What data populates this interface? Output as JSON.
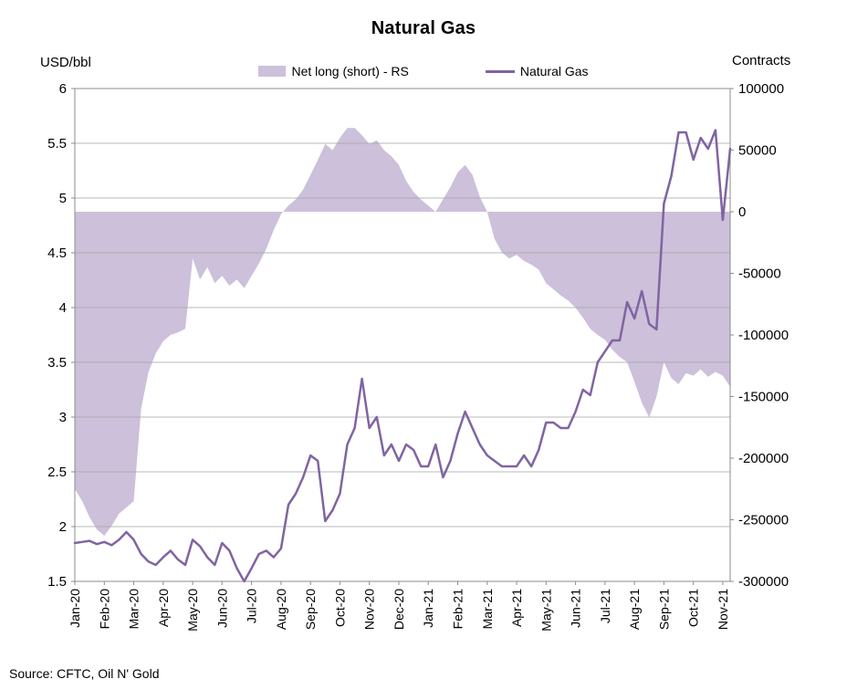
{
  "title": "Natural Gas",
  "left_axis_unit_label": "USD/bbl",
  "right_axis_unit_label": "Contracts",
  "source_note": "Source: CFTC, Oil N' Gold",
  "chart_data": {
    "type": "area+line",
    "legend_position": "top",
    "grid": "horizontal",
    "x_labels": [
      "Jan-20",
      "Feb-20",
      "Mar-20",
      "Apr-20",
      "May-20",
      "Jun-20",
      "Jul-20",
      "Aug-20",
      "Sep-20",
      "Oct-20",
      "Nov-20",
      "Dec-20",
      "Jan-21",
      "Feb-21",
      "Mar-21",
      "Apr-21",
      "May-21",
      "Jun-21",
      "Jul-21",
      "Aug-21",
      "Sep-21",
      "Oct-21",
      "Nov-21"
    ],
    "points_per_label": 4,
    "left_axis": {
      "title": "USD/bbl",
      "min": 1.5,
      "max": 6,
      "ticks": [
        6,
        5.5,
        5,
        4.5,
        4,
        3.5,
        3,
        2.5,
        2,
        1.5
      ]
    },
    "right_axis": {
      "title": "Contracts",
      "min": -300000,
      "max": 100000,
      "ticks": [
        100000,
        50000,
        0,
        -50000,
        -100000,
        -150000,
        -200000,
        -250000,
        -300000
      ]
    },
    "series": [
      {
        "name": "Net long (short) - RS",
        "type": "area",
        "axis": "right",
        "color": "#CCC0DA",
        "values": [
          -225000,
          -235000,
          -248000,
          -258000,
          -263000,
          -255000,
          -245000,
          -240000,
          -235000,
          -160000,
          -130000,
          -115000,
          -105000,
          -100000,
          -98000,
          -95000,
          -38000,
          -55000,
          -45000,
          -58000,
          -52000,
          -60000,
          -55000,
          -62000,
          -52000,
          -42000,
          -30000,
          -15000,
          -2000,
          5000,
          10000,
          18000,
          30000,
          42000,
          55000,
          50000,
          60000,
          68000,
          68000,
          62000,
          55000,
          58000,
          50000,
          45000,
          38000,
          25000,
          16000,
          10000,
          5000,
          0,
          10000,
          20000,
          32000,
          38000,
          30000,
          12000,
          0,
          -22000,
          -33000,
          -38000,
          -35000,
          -40000,
          -43000,
          -47000,
          -58000,
          -63000,
          -68000,
          -72000,
          -78000,
          -86000,
          -95000,
          -100000,
          -104000,
          -112000,
          -118000,
          -122000,
          -138000,
          -155000,
          -167000,
          -150000,
          -122000,
          -135000,
          -140000,
          -131000,
          -133000,
          -128000,
          -134000,
          -130000,
          -133000,
          -142000
        ]
      },
      {
        "name": "Natural Gas",
        "type": "line",
        "axis": "left",
        "color": "#8064A2",
        "values": [
          1.85,
          1.86,
          1.87,
          1.84,
          1.86,
          1.83,
          1.88,
          1.95,
          1.88,
          1.75,
          1.68,
          1.65,
          1.72,
          1.78,
          1.7,
          1.65,
          1.88,
          1.82,
          1.72,
          1.65,
          1.85,
          1.78,
          1.62,
          1.5,
          1.62,
          1.75,
          1.78,
          1.72,
          1.8,
          2.2,
          2.3,
          2.45,
          2.65,
          2.6,
          2.05,
          2.15,
          2.3,
          2.75,
          2.9,
          3.35,
          2.9,
          3.0,
          2.65,
          2.75,
          2.6,
          2.75,
          2.7,
          2.55,
          2.55,
          2.75,
          2.45,
          2.6,
          2.85,
          3.05,
          2.9,
          2.75,
          2.65,
          2.6,
          2.55,
          2.55,
          2.55,
          2.65,
          2.55,
          2.7,
          2.95,
          2.95,
          2.9,
          2.9,
          3.05,
          3.25,
          3.2,
          3.5,
          3.6,
          3.7,
          3.7,
          4.05,
          3.9,
          4.15,
          3.85,
          3.8,
          4.95,
          5.2,
          5.6,
          5.6,
          5.35,
          5.55,
          5.45,
          5.62,
          4.8,
          5.45
        ]
      }
    ]
  }
}
